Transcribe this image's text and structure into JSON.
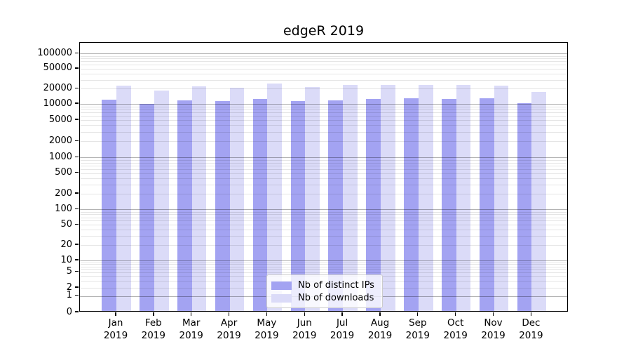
{
  "chart": {
    "title": "edgeR 2019"
  },
  "chart_data": {
    "type": "bar",
    "title": "edgeR 2019",
    "categories": [
      "Jan",
      "Feb",
      "Mar",
      "Apr",
      "May",
      "Jun",
      "Jul",
      "Aug",
      "Sep",
      "Oct",
      "Nov",
      "Dec"
    ],
    "year_label": "2019",
    "series": [
      {
        "name": "Nb of distinct IPs",
        "color": "#a3a3f2",
        "values": [
          11500,
          9400,
          10900,
          10700,
          11600,
          10800,
          11000,
          11700,
          12100,
          11600,
          12000,
          9700
        ]
      },
      {
        "name": "Nb of downloads",
        "color": "#dbdbf8",
        "values": [
          21400,
          17100,
          20700,
          19600,
          23600,
          20500,
          22300,
          22100,
          22300,
          22300,
          21600,
          16200
        ]
      }
    ],
    "xlabel": "",
    "ylabel": "",
    "yscale": "symlog",
    "ylim": [
      0,
      160000
    ],
    "y_ticks": [
      100000,
      50000,
      20000,
      10000,
      5000,
      2000,
      1000,
      500,
      200,
      100,
      50,
      20,
      10,
      5,
      2,
      1,
      0
    ],
    "y_tick_labels": [
      "100000",
      "50000",
      "20000",
      "10000",
      "5000",
      "2000",
      "1000",
      "500",
      "200",
      "100",
      "50",
      "20",
      "10",
      "5",
      "2",
      "1",
      "0"
    ],
    "grid": "horizontal log minor + major decade lines",
    "legend_position": "inside lower-center"
  },
  "legend": {
    "items": [
      {
        "label": "Nb of distinct IPs",
        "color": "#a3a3f2"
      },
      {
        "label": "Nb of downloads",
        "color": "#dbdbf8"
      }
    ]
  },
  "colors": {
    "background": "#ffffff",
    "frame": "#000000",
    "bar_distinct_ips": "#a3a3f2",
    "bar_downloads": "#dbdbf8",
    "grid_major": "#b3b3b3",
    "grid_minor": "#e6e6e6",
    "legend_border": "#cccccc"
  }
}
